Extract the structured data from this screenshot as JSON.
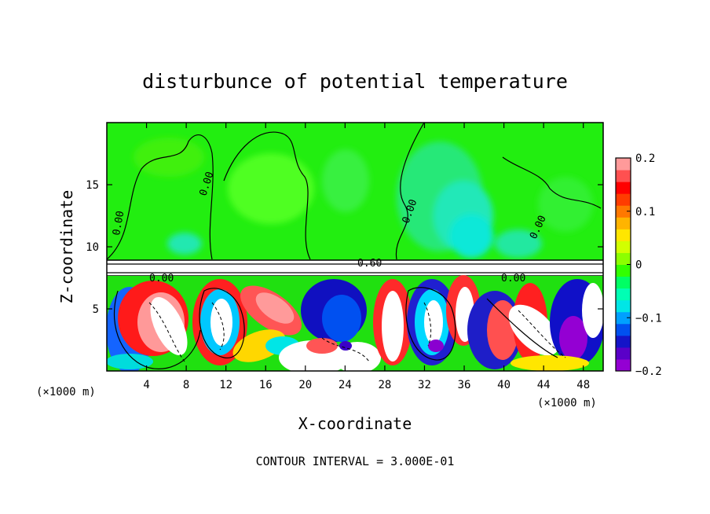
{
  "chart_data": {
    "type": "heatmap",
    "title": "disturbunce of potential temperature",
    "xlabel": "X-coordinate",
    "ylabel": "Z-coordinate",
    "x_unit": "(×1000 m)",
    "y_unit": "(×1000 m)",
    "xlim": [
      0,
      50
    ],
    "ylim": [
      0,
      20
    ],
    "x_ticks": [
      4,
      8,
      12,
      16,
      20,
      24,
      28,
      32,
      36,
      40,
      44,
      48
    ],
    "y_ticks": [
      5,
      10,
      15
    ],
    "colorbar": {
      "ticks": [
        0.2,
        0.1,
        0,
        -0.1,
        -0.2
      ],
      "vmin": -0.2,
      "vmax": 0.2,
      "colors": [
        "#9400d3",
        "#5a00c8",
        "#1414c8",
        "#0050f0",
        "#00a0ff",
        "#00e6e6",
        "#00ffb4",
        "#00ff64",
        "#32ff00",
        "#8cff00",
        "#d2ff00",
        "#ffe600",
        "#ffb400",
        "#ff7800",
        "#ff3c00",
        "#ff0000",
        "#ff5050",
        "#ff9a9a"
      ]
    },
    "contour_labels": [
      "0.00",
      "0.00",
      "0.00",
      "0.00",
      "0.00",
      "0.00",
      "0.60"
    ],
    "note": "CONTOUR INTERVAL = 3.000E-01"
  }
}
